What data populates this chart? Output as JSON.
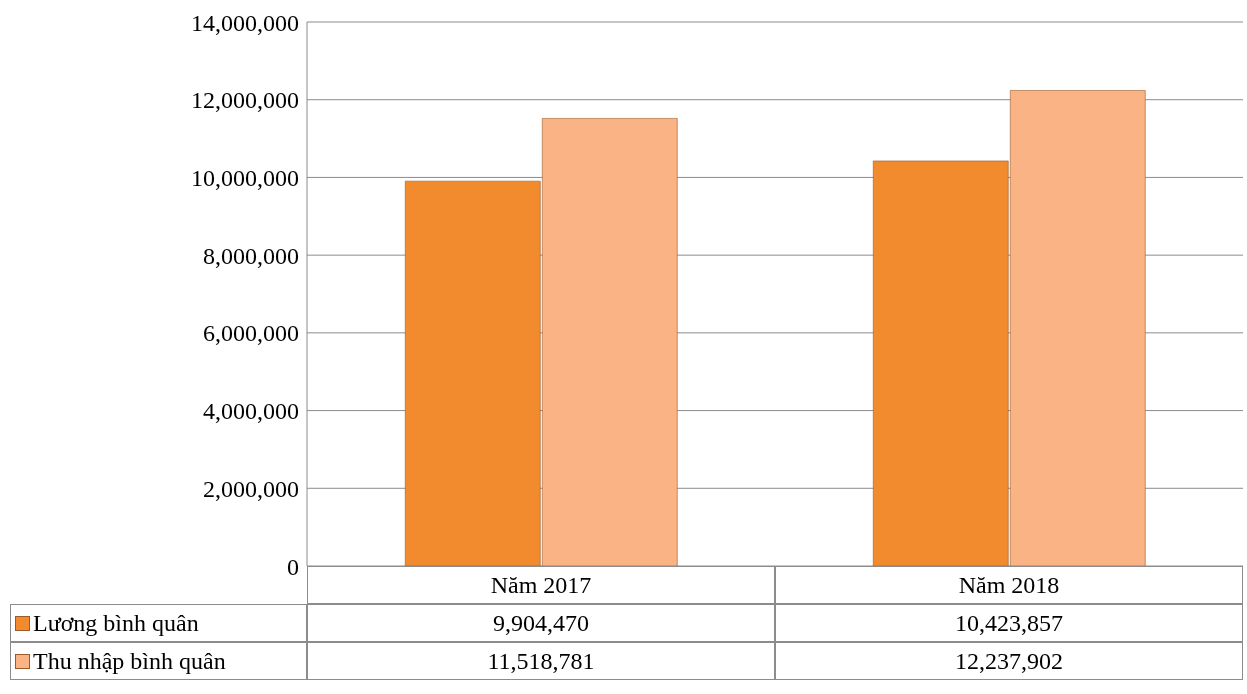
{
  "chart_data": {
    "type": "bar",
    "categories": [
      "Năm 2017",
      "Năm 2018"
    ],
    "series": [
      {
        "name": "Lương bình quân",
        "color": "#f28a2e",
        "values": [
          9904470,
          10423857
        ],
        "value_labels": [
          "9,904,470",
          "10,423,857"
        ]
      },
      {
        "name": "Thu nhập bình quân",
        "color": "#f9b385",
        "values": [
          11518781,
          12237902
        ],
        "value_labels": [
          "11,518,781",
          "12,237,902"
        ]
      }
    ],
    "ylim": [
      0,
      14000000
    ],
    "yticks": [
      {
        "value": 0,
        "label": "0"
      },
      {
        "value": 2000000,
        "label": "2,000,000"
      },
      {
        "value": 4000000,
        "label": "4,000,000"
      },
      {
        "value": 6000000,
        "label": "6,000,000"
      },
      {
        "value": 8000000,
        "label": "8,000,000"
      },
      {
        "value": 10000000,
        "label": "10,000,000"
      },
      {
        "value": 12000000,
        "label": "12,000,000"
      },
      {
        "value": 14000000,
        "label": "14,000,000"
      }
    ],
    "grid": "y",
    "legend": "bottom"
  }
}
